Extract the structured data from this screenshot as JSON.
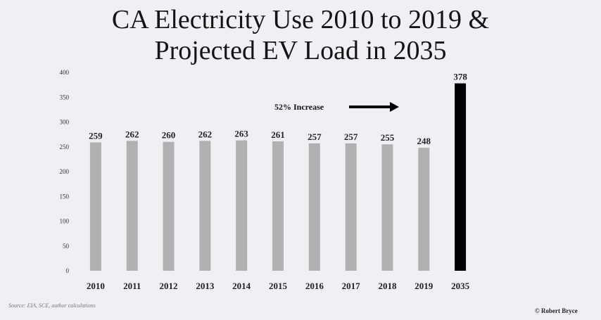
{
  "slide": {
    "title_line_1": "CA Electricity Use 2010 to 2019 &",
    "title_line_2": "Projected EV Load in 2035",
    "source": "Source: EIA, SCE, author calculations",
    "copyright": "© Robert Bryce"
  },
  "chart_data": {
    "type": "bar",
    "title": "CA Electricity Use 2010 to 2019 & Projected EV Load in 2035",
    "categories": [
      "2010",
      "2011",
      "2012",
      "2013",
      "2014",
      "2015",
      "2016",
      "2017",
      "2018",
      "2019",
      "2035"
    ],
    "values": [
      259,
      262,
      260,
      262,
      263,
      261,
      257,
      257,
      255,
      248,
      378
    ],
    "data_labels": [
      "259",
      "262",
      "260",
      "262",
      "263",
      "261",
      "257",
      "257",
      "255",
      "248",
      "378"
    ],
    "bar_colors": [
      "#b1b1b1",
      "#b1b1b1",
      "#b1b1b1",
      "#b1b1b1",
      "#b1b1b1",
      "#b1b1b1",
      "#b1b1b1",
      "#b1b1b1",
      "#b1b1b1",
      "#b1b1b1",
      "#000000"
    ],
    "ylim": [
      0,
      400
    ],
    "yticks": [
      0,
      50,
      100,
      150,
      200,
      250,
      300,
      350,
      400
    ],
    "xlabel": "",
    "ylabel": "",
    "grid": false,
    "legend": "none",
    "annotation": {
      "text": "52% Increase",
      "arrow": "right"
    }
  }
}
